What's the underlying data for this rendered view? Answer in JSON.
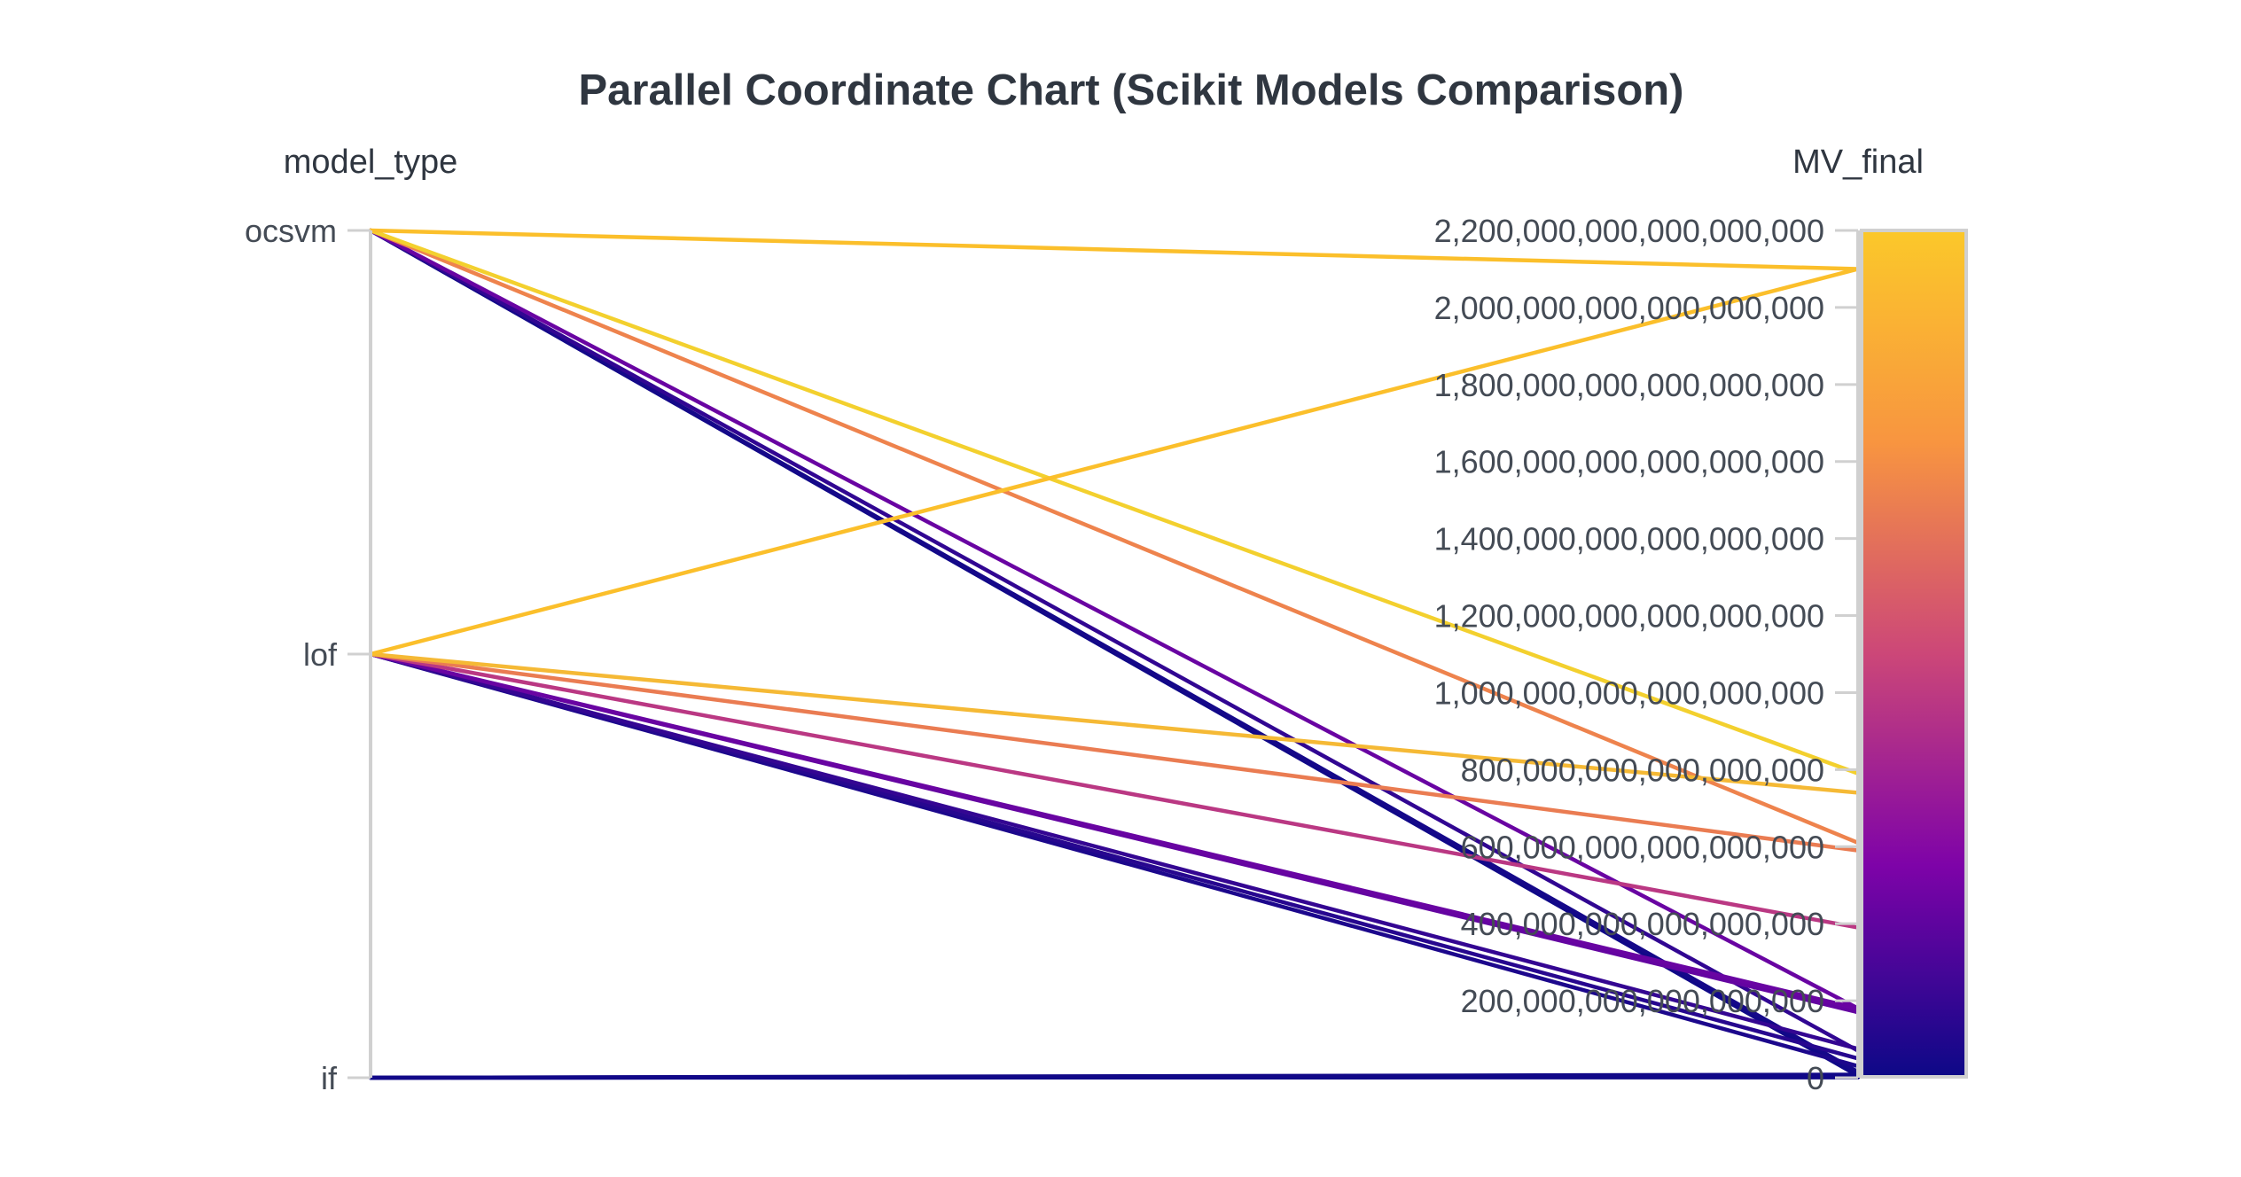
{
  "chart_data": {
    "type": "parallel_coordinates",
    "title": "Parallel Coordinate Chart (Scikit Models Comparison)",
    "axes": [
      {
        "name": "model_type",
        "kind": "categorical",
        "categories_top_to_bottom": [
          "ocsvm",
          "lof",
          "if"
        ]
      },
      {
        "name": "MV_final",
        "kind": "numeric",
        "range": [
          0,
          2200000000000000000
        ],
        "tick_labels": [
          "2,200,000,000,000,000,000",
          "2,000,000,000,000,000,000",
          "1,800,000,000,000,000,000",
          "1,600,000,000,000,000,000",
          "1,400,000,000,000,000,000",
          "1,200,000,000,000,000,000",
          "1,000,000,000,000,000,000",
          "800,000,000,000,000,000",
          "600,000,000,000,000,000",
          "400,000,000,000,000,000",
          "200,000,000,000,000,000",
          "0"
        ],
        "tick_values": [
          2200000000000000000,
          2000000000000000000,
          1800000000000000000,
          1600000000000000000,
          1400000000000000000,
          1200000000000000000,
          1000000000000000000,
          800000000000000000,
          600000000000000000,
          400000000000000000,
          200000000000000000,
          0
        ]
      }
    ],
    "colorscale": {
      "name": "plasma",
      "stops": [
        "#0d0887",
        "#7e03a8",
        "#cc4778",
        "#f89540",
        "#f0f921"
      ],
      "line_high_color": "#fbbf2b"
    },
    "lines": [
      {
        "model_type": "ocsvm",
        "MV_final": 2100000000000000000
      },
      {
        "model_type": "ocsvm",
        "MV_final": 790000000000000000
      },
      {
        "model_type": "ocsvm",
        "MV_final": 610000000000000000
      },
      {
        "model_type": "ocsvm",
        "MV_final": 180000000000000000
      },
      {
        "model_type": "ocsvm",
        "MV_final": 70000000000000000
      },
      {
        "model_type": "ocsvm",
        "MV_final": 15000000000000000
      },
      {
        "model_type": "ocsvm",
        "MV_final": 5000000000000000
      },
      {
        "model_type": "lof",
        "MV_final": 2100000000000000000
      },
      {
        "model_type": "lof",
        "MV_final": 740000000000000000
      },
      {
        "model_type": "lof",
        "MV_final": 590000000000000000
      },
      {
        "model_type": "lof",
        "MV_final": 390000000000000000
      },
      {
        "model_type": "lof",
        "MV_final": 180000000000000000
      },
      {
        "model_type": "lof",
        "MV_final": 170000000000000000
      },
      {
        "model_type": "lof",
        "MV_final": 75000000000000000
      },
      {
        "model_type": "lof",
        "MV_final": 50000000000000000
      },
      {
        "model_type": "lof",
        "MV_final": 30000000000000000
      },
      {
        "model_type": "if",
        "MV_final": 8000000000000000
      },
      {
        "model_type": "if",
        "MV_final": 5000000000000000
      },
      {
        "model_type": "if",
        "MV_final": 3000000000000000
      },
      {
        "model_type": "if",
        "MV_final": 1000000000000000
      }
    ]
  }
}
